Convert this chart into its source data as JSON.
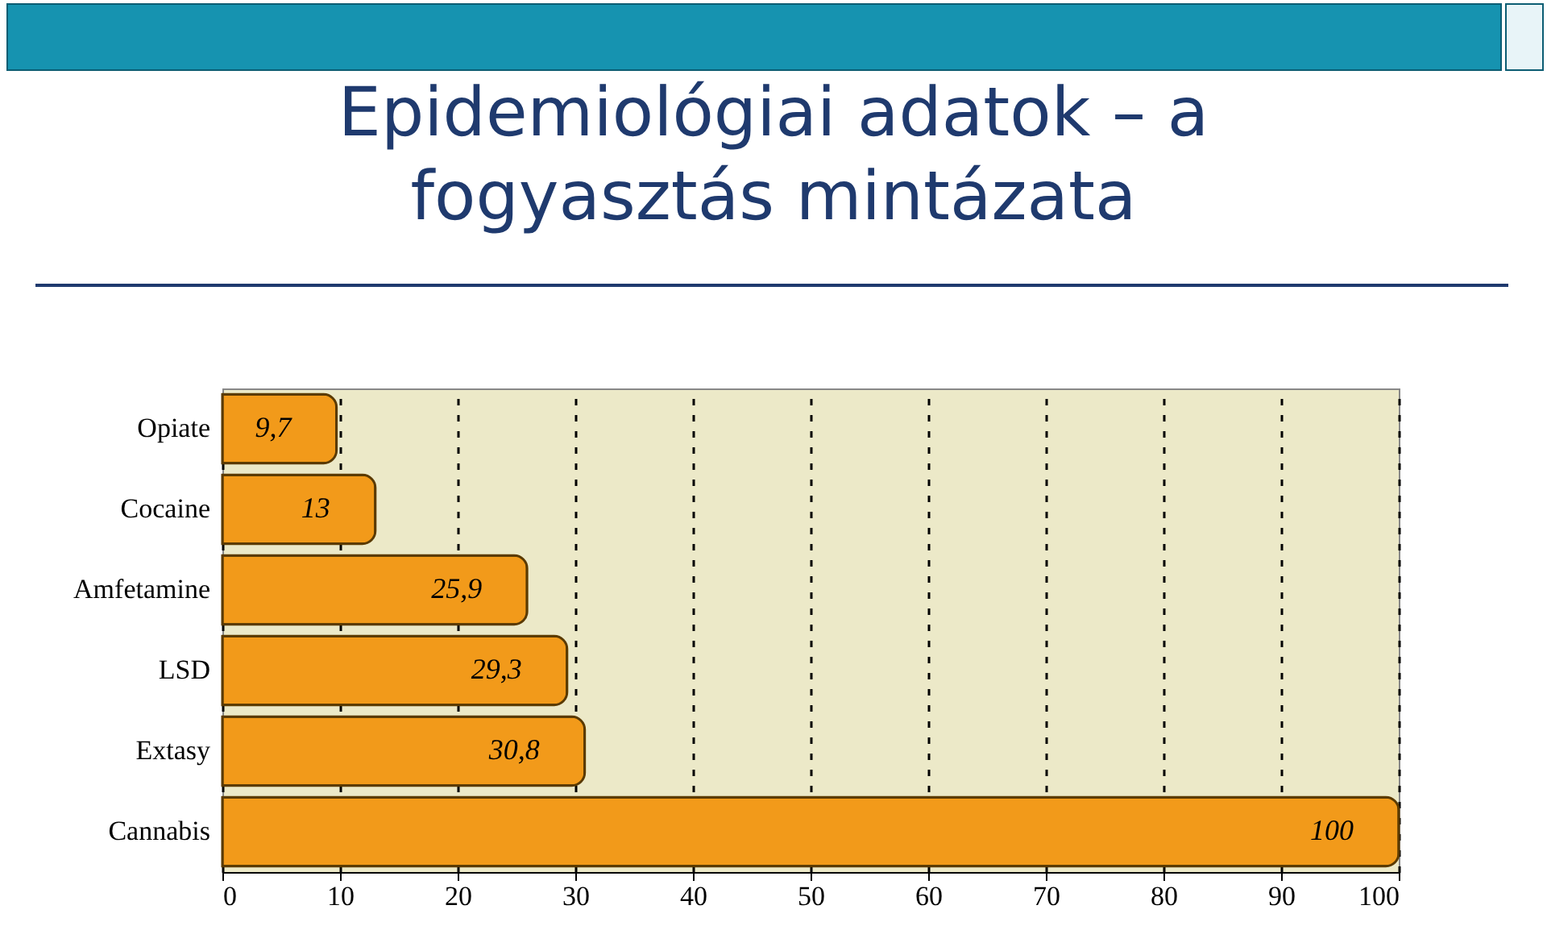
{
  "chart_data": {
    "type": "bar",
    "orientation": "horizontal",
    "title": "Epidemiológiai adatok – a fogyasztás mintázata",
    "categories": [
      "Opiate",
      "Cocaine",
      "Amfetamine",
      "LSD",
      "Extasy",
      "Cannabis"
    ],
    "values": [
      9.7,
      13,
      25.9,
      29.3,
      30.8,
      100
    ],
    "value_labels": [
      "9,7",
      "13",
      "25,9",
      "29,3",
      "30,8",
      "100"
    ],
    "color": "#f29a1a",
    "xlim": [
      0,
      100
    ],
    "xticks": [
      0,
      10,
      20,
      30,
      40,
      50,
      60,
      70,
      80,
      90,
      100
    ],
    "grid": "x"
  }
}
